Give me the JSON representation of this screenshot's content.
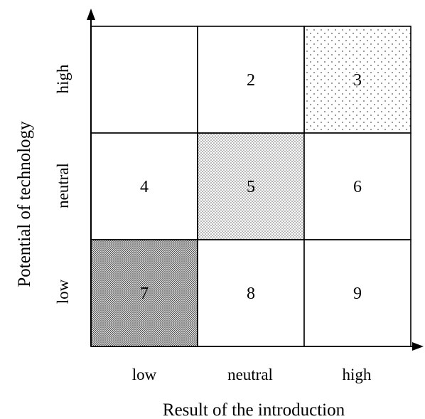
{
  "axes": {
    "x_title": "Result of the introduction",
    "y_title": "Potential of technology",
    "x_ticks": [
      "low",
      "neutral",
      "high"
    ],
    "y_ticks": [
      "high",
      "neutral",
      "low"
    ]
  },
  "grid": {
    "rows": [
      [
        {
          "label": "",
          "shading": "none"
        },
        {
          "label": "2",
          "shading": "none"
        },
        {
          "label": "3",
          "shading": "light"
        }
      ],
      [
        {
          "label": "4",
          "shading": "none"
        },
        {
          "label": "5",
          "shading": "medium"
        },
        {
          "label": "6",
          "shading": "none"
        }
      ],
      [
        {
          "label": "7",
          "shading": "dense"
        },
        {
          "label": "8",
          "shading": "none"
        },
        {
          "label": "9",
          "shading": "none"
        }
      ]
    ]
  }
}
